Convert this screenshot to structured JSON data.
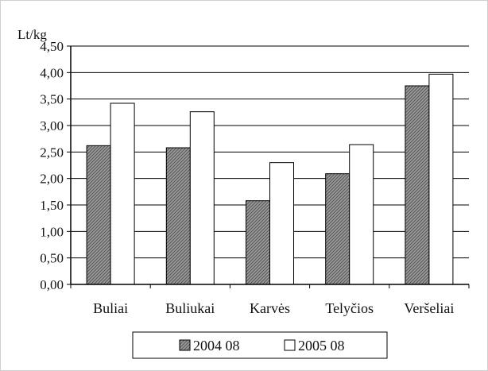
{
  "chart_data": {
    "type": "bar",
    "ylabel": "Lt/kg",
    "ylim": [
      0,
      4.5
    ],
    "yticks": [
      "0,00",
      "0,50",
      "1,00",
      "1,50",
      "2,00",
      "2,50",
      "3,00",
      "3,50",
      "4,00",
      "4,50"
    ],
    "categories": [
      "Buliai",
      "Buliukai",
      "Karvės",
      "Telyčios",
      "Veršeliai"
    ],
    "series": [
      {
        "name": "2004 08",
        "values": [
          2.62,
          2.58,
          1.58,
          2.09,
          3.75
        ]
      },
      {
        "name": "2005 08",
        "values": [
          3.42,
          3.26,
          2.3,
          2.64,
          3.97
        ]
      }
    ],
    "grid": true,
    "legend": "bottom",
    "colors": {
      "series_1": "#8a8a8a",
      "series_2": "#ffffff",
      "grid": "#000000"
    }
  }
}
